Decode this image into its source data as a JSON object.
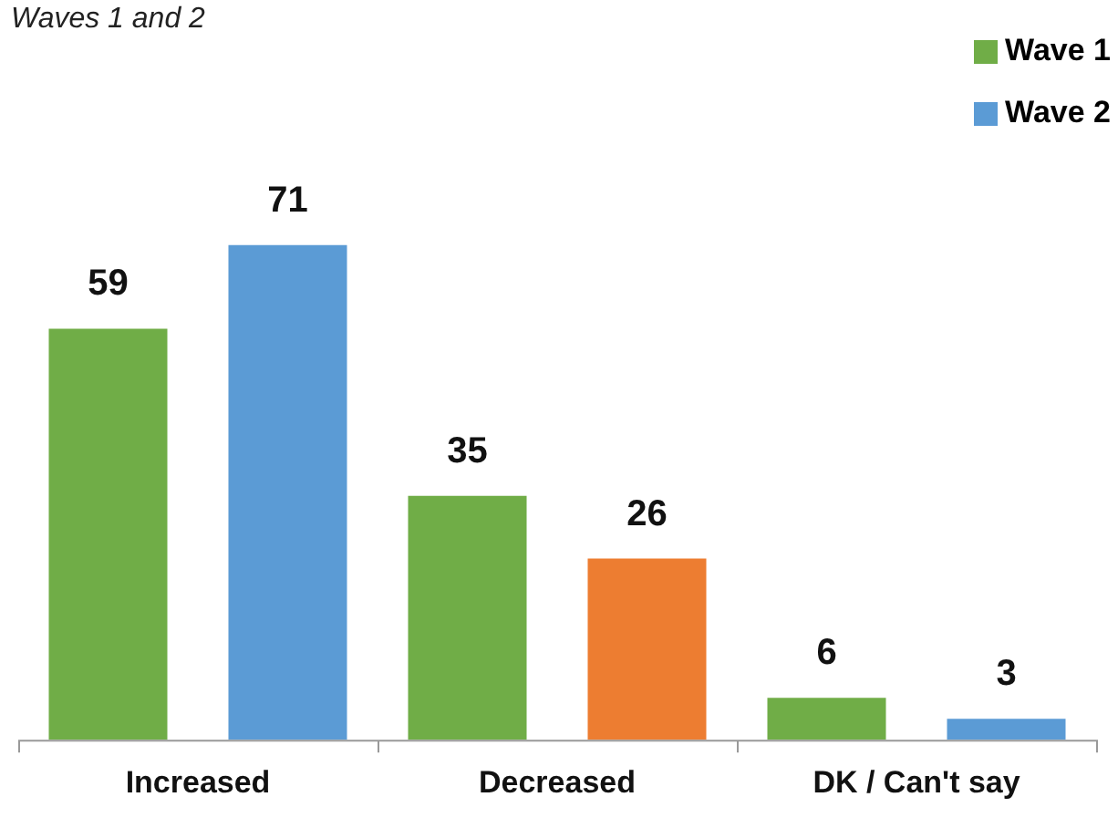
{
  "chart_data": {
    "type": "bar",
    "title": "Waves 1 and 2",
    "categories": [
      "Increased",
      "Decreased",
      "DK / Can't say"
    ],
    "series": [
      {
        "name": "Wave 1",
        "color": "#70ad47",
        "values": [
          59,
          35,
          6
        ]
      },
      {
        "name": "Wave 2",
        "color": "#5b9bd5",
        "colors": [
          "#5b9bd5",
          "#ed7d31",
          "#5b9bd5"
        ],
        "values": [
          71,
          26,
          3
        ]
      }
    ],
    "tick_labels": "x",
    "data_labels": true,
    "legend": "top right",
    "grid": false
  }
}
